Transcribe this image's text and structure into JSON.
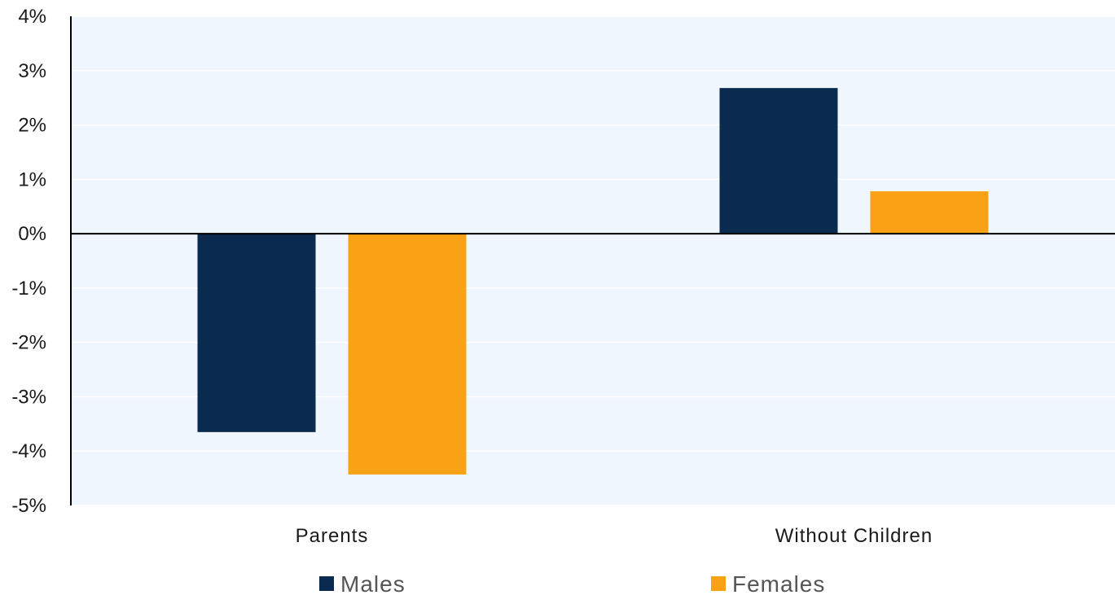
{
  "chart_data": {
    "type": "bar",
    "title": "",
    "categories": [
      "Parents",
      "Without Children"
    ],
    "series": [
      {
        "name": "Males",
        "color": "#0b2a4f",
        "values": [
          -3.65,
          2.68
        ]
      },
      {
        "name": "Females",
        "color": "#f9a216",
        "values": [
          -4.43,
          0.78
        ]
      }
    ],
    "xlabel": "",
    "ylabel": "",
    "ylim": [
      -5,
      4
    ],
    "yticks": [
      4,
      3,
      2,
      1,
      0,
      -1,
      -2,
      -3,
      -4,
      -5
    ],
    "ytick_labels": [
      "4%",
      "3%",
      "2%",
      "1%",
      "0%",
      "-1%",
      "-2%",
      "-3%",
      "-4%",
      "-5%"
    ],
    "grid": true,
    "legend_position": "bottom",
    "plot_background": "#eff6fd"
  }
}
